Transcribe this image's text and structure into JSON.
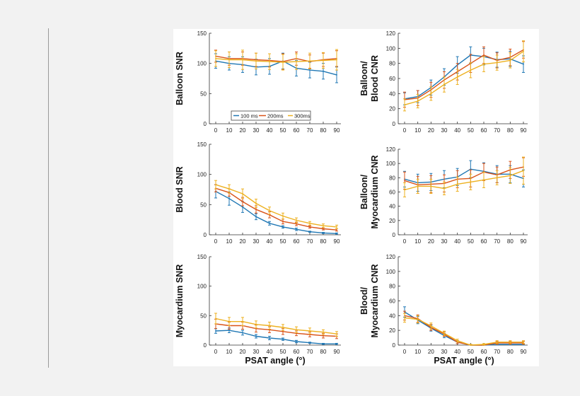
{
  "chart_data": {
    "type": "line",
    "x_label": "PSAT angle (°)",
    "x_ticks": [
      0,
      10,
      20,
      30,
      40,
      50,
      60,
      70,
      80,
      90
    ],
    "legend": [
      {
        "name": "100 ms",
        "color": "#1f77b4"
      },
      {
        "name": "200ms",
        "color": "#d95319"
      },
      {
        "name": "300ms",
        "color": "#edb120"
      }
    ],
    "panels": [
      {
        "ylabel": [
          "Balloon SNR"
        ],
        "ylim": [
          0,
          150
        ],
        "yticks": [
          0,
          50,
          100,
          150
        ],
        "series": [
          {
            "values": [
              104,
              100,
              98,
              94,
              95,
              104,
              92,
              89,
              87,
              81
            ],
            "err": [
              12,
              11,
              13,
              13,
              13,
              13,
              13,
              13,
              13,
              13
            ]
          },
          {
            "values": [
              112,
              108,
              108,
              106,
              105,
              103,
              108,
              103,
              106,
              108
            ],
            "err": [
              10,
              11,
              11,
              11,
              11,
              13,
              11,
              11,
              11,
              13
            ]
          },
          {
            "values": [
              108,
              106,
              106,
              104,
              103,
              102,
              103,
              104,
              105,
              106
            ],
            "err": [
              13,
              13,
              16,
              13,
              13,
              13,
              13,
              13,
              13,
              17
            ]
          }
        ]
      },
      {
        "ylabel": [
          "Balloon/",
          "Blood CNR"
        ],
        "ylim": [
          0,
          120
        ],
        "yticks": [
          0,
          20,
          40,
          60,
          80,
          100,
          120
        ],
        "series": [
          {
            "values": [
              33,
              36,
              48,
              62,
              78,
              91,
              89,
              85,
              86,
              79
            ],
            "err": [
              8,
              8,
              10,
              11,
              11,
              11,
              11,
              10,
              10,
              11
            ]
          },
          {
            "values": [
              32,
              34,
              45,
              58,
              69,
              80,
              91,
              84,
              88,
              98
            ],
            "err": [
              10,
              10,
              10,
              11,
              11,
              12,
              11,
              10,
              11,
              11
            ]
          },
          {
            "values": [
              25,
              30,
              40,
              52,
              62,
              71,
              79,
              81,
              84,
              96
            ],
            "err": [
              8,
              9,
              9,
              10,
              10,
              10,
              10,
              10,
              10,
              14
            ]
          }
        ]
      },
      {
        "ylabel": [
          "Blood SNR"
        ],
        "ylim": [
          0,
          150
        ],
        "yticks": [
          0,
          50,
          100,
          150
        ],
        "series": [
          {
            "values": [
              72,
              60,
              46,
              30,
              19,
              13,
              9,
              5,
              3,
              2
            ],
            "err": [
              11,
              11,
              9,
              5,
              3,
              2,
              2,
              1,
              1,
              1
            ]
          },
          {
            "values": [
              77,
              70,
              55,
              42,
              33,
              22,
              18,
              13,
              10,
              8
            ],
            "err": [
              6,
              6,
              7,
              6,
              5,
              4,
              3,
              2,
              2,
              2
            ]
          },
          {
            "values": [
              83,
              76,
              68,
              52,
              40,
              31,
              24,
              19,
              15,
              13
            ],
            "err": [
              7,
              7,
              8,
              7,
              6,
              5,
              4,
              3,
              3,
              3
            ]
          }
        ]
      },
      {
        "ylabel": [
          "Balloon/",
          "Myocardium CNR"
        ],
        "ylim": [
          0,
          120
        ],
        "yticks": [
          0,
          20,
          40,
          60,
          80,
          100,
          120
        ],
        "series": [
          {
            "values": [
              78,
              73,
              74,
              78,
              81,
              92,
              89,
              85,
              85,
              79
            ],
            "err": [
              11,
              12,
              12,
              12,
              12,
              12,
              12,
              12,
              12,
              12
            ]
          },
          {
            "values": [
              76,
              70,
              71,
              72,
              78,
              79,
              88,
              84,
              91,
              95
            ],
            "err": [
              12,
              12,
              12,
              12,
              12,
              12,
              12,
              11,
              12,
              13
            ]
          },
          {
            "values": [
              63,
              68,
              68,
              65,
              71,
              74,
              77,
              80,
              83,
              90
            ],
            "err": [
              10,
              10,
              10,
              9,
              10,
              11,
              11,
              10,
              11,
              19
            ]
          }
        ]
      },
      {
        "ylabel": [
          "Myocardium SNR"
        ],
        "ylim": [
          0,
          150
        ],
        "yticks": [
          0,
          50,
          100,
          150
        ],
        "series": [
          {
            "values": [
              24,
              25,
              21,
              15,
              12,
              10,
              6,
              4,
              2,
              2
            ],
            "err": [
              4,
              4,
              4,
              3,
              3,
              2,
              2,
              1,
              1,
              1
            ]
          },
          {
            "values": [
              36,
              33,
              33,
              28,
              26,
              23,
              20,
              18,
              16,
              15
            ],
            "err": [
              8,
              6,
              6,
              6,
              5,
              5,
              4,
              4,
              4,
              4
            ]
          },
          {
            "values": [
              45,
              40,
              40,
              35,
              33,
              30,
              26,
              24,
              22,
              19
            ],
            "err": [
              9,
              7,
              7,
              6,
              6,
              5,
              5,
              5,
              4,
              4
            ]
          }
        ]
      },
      {
        "ylabel": [
          "Blood/",
          "Myocardium CNR"
        ],
        "ylim": [
          0,
          120
        ],
        "yticks": [
          0,
          20,
          40,
          60,
          80,
          100,
          120
        ],
        "series": [
          {
            "values": [
              45,
              34,
              23,
              13,
              4,
              0,
              0,
              1,
              1,
              1
            ],
            "err": [
              7,
              5,
              4,
              3,
              2,
              1,
              1,
              1,
              1,
              1
            ]
          },
          {
            "values": [
              40,
              36,
              24,
              15,
              4,
              0,
              0,
              3,
              3,
              3
            ],
            "err": [
              6,
              5,
              4,
              3,
              2,
              1,
              1,
              2,
              2,
              2
            ]
          },
          {
            "values": [
              37,
              35,
              26,
              16,
              6,
              0,
              1,
              4,
              4,
              4
            ],
            "err": [
              6,
              5,
              4,
              3,
              2,
              1,
              1,
              2,
              2,
              2
            ]
          }
        ]
      }
    ]
  }
}
